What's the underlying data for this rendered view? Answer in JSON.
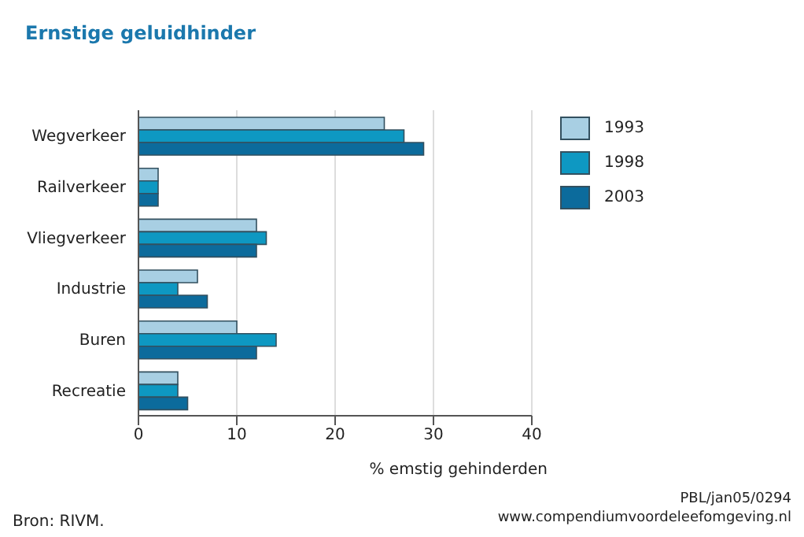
{
  "chart_data": {
    "type": "bar",
    "orientation": "horizontal",
    "title": "Ernstige geluidhinder",
    "xlabel": "% emstig gehinderden",
    "categories": [
      "Wegverkeer",
      "Railverkeer",
      "Vliegverkeer",
      "Industrie",
      "Buren",
      "Recreatie"
    ],
    "series": [
      {
        "name": "1993",
        "color": "#a8cfe3",
        "values": [
          25,
          2,
          12,
          6,
          10,
          4
        ]
      },
      {
        "name": "1998",
        "color": "#0e98c2",
        "values": [
          27,
          2,
          13,
          4,
          14,
          4
        ]
      },
      {
        "name": "2003",
        "color": "#0c6b9c",
        "values": [
          29,
          2,
          12,
          7,
          12,
          5
        ]
      }
    ],
    "xlim": [
      0,
      40
    ],
    "xticks": [
      0,
      10,
      20,
      30,
      40
    ],
    "grid": "x",
    "legend": "top right",
    "annotations": [
      "Bron: RIVM.",
      "PBL/jan05/0294",
      "www.compendiumvoordeleefomgeving.nl"
    ]
  }
}
